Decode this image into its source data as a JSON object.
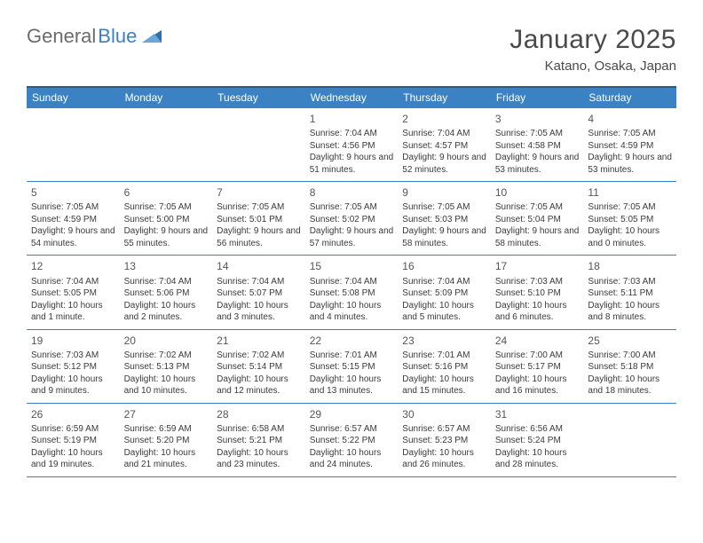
{
  "logo": {
    "text1": "General",
    "text2": "Blue"
  },
  "header": {
    "title": "January 2025",
    "location": "Katano, Osaka, Japan"
  },
  "dayNames": [
    "Sunday",
    "Monday",
    "Tuesday",
    "Wednesday",
    "Thursday",
    "Friday",
    "Saturday"
  ],
  "colors": {
    "header_bg": "#3b82c4",
    "header_border": "#2a5a8a",
    "week_border": "#3b7fc4",
    "text": "#3a3a3a",
    "title_text": "#4a4a4a",
    "logo_gray": "#6b6b6b",
    "logo_blue": "#3b7fc4",
    "background": "#ffffff"
  },
  "typography": {
    "title_fontsize": 30,
    "subtitle_fontsize": 15,
    "dayheader_fontsize": 12,
    "daynum_fontsize": 12,
    "cell_fontsize": 10
  },
  "labels": {
    "sunrise": "Sunrise:",
    "sunset": "Sunset:",
    "daylight": "Daylight:"
  },
  "weeks": [
    [
      null,
      null,
      null,
      {
        "day": "1",
        "sunrise": "7:04 AM",
        "sunset": "4:56 PM",
        "daylight": "9 hours and 51 minutes."
      },
      {
        "day": "2",
        "sunrise": "7:04 AM",
        "sunset": "4:57 PM",
        "daylight": "9 hours and 52 minutes."
      },
      {
        "day": "3",
        "sunrise": "7:05 AM",
        "sunset": "4:58 PM",
        "daylight": "9 hours and 53 minutes."
      },
      {
        "day": "4",
        "sunrise": "7:05 AM",
        "sunset": "4:59 PM",
        "daylight": "9 hours and 53 minutes."
      }
    ],
    [
      {
        "day": "5",
        "sunrise": "7:05 AM",
        "sunset": "4:59 PM",
        "daylight": "9 hours and 54 minutes."
      },
      {
        "day": "6",
        "sunrise": "7:05 AM",
        "sunset": "5:00 PM",
        "daylight": "9 hours and 55 minutes."
      },
      {
        "day": "7",
        "sunrise": "7:05 AM",
        "sunset": "5:01 PM",
        "daylight": "9 hours and 56 minutes."
      },
      {
        "day": "8",
        "sunrise": "7:05 AM",
        "sunset": "5:02 PM",
        "daylight": "9 hours and 57 minutes."
      },
      {
        "day": "9",
        "sunrise": "7:05 AM",
        "sunset": "5:03 PM",
        "daylight": "9 hours and 58 minutes."
      },
      {
        "day": "10",
        "sunrise": "7:05 AM",
        "sunset": "5:04 PM",
        "daylight": "9 hours and 58 minutes."
      },
      {
        "day": "11",
        "sunrise": "7:05 AM",
        "sunset": "5:05 PM",
        "daylight": "10 hours and 0 minutes."
      }
    ],
    [
      {
        "day": "12",
        "sunrise": "7:04 AM",
        "sunset": "5:05 PM",
        "daylight": "10 hours and 1 minute."
      },
      {
        "day": "13",
        "sunrise": "7:04 AM",
        "sunset": "5:06 PM",
        "daylight": "10 hours and 2 minutes."
      },
      {
        "day": "14",
        "sunrise": "7:04 AM",
        "sunset": "5:07 PM",
        "daylight": "10 hours and 3 minutes."
      },
      {
        "day": "15",
        "sunrise": "7:04 AM",
        "sunset": "5:08 PM",
        "daylight": "10 hours and 4 minutes."
      },
      {
        "day": "16",
        "sunrise": "7:04 AM",
        "sunset": "5:09 PM",
        "daylight": "10 hours and 5 minutes."
      },
      {
        "day": "17",
        "sunrise": "7:03 AM",
        "sunset": "5:10 PM",
        "daylight": "10 hours and 6 minutes."
      },
      {
        "day": "18",
        "sunrise": "7:03 AM",
        "sunset": "5:11 PM",
        "daylight": "10 hours and 8 minutes."
      }
    ],
    [
      {
        "day": "19",
        "sunrise": "7:03 AM",
        "sunset": "5:12 PM",
        "daylight": "10 hours and 9 minutes."
      },
      {
        "day": "20",
        "sunrise": "7:02 AM",
        "sunset": "5:13 PM",
        "daylight": "10 hours and 10 minutes."
      },
      {
        "day": "21",
        "sunrise": "7:02 AM",
        "sunset": "5:14 PM",
        "daylight": "10 hours and 12 minutes."
      },
      {
        "day": "22",
        "sunrise": "7:01 AM",
        "sunset": "5:15 PM",
        "daylight": "10 hours and 13 minutes."
      },
      {
        "day": "23",
        "sunrise": "7:01 AM",
        "sunset": "5:16 PM",
        "daylight": "10 hours and 15 minutes."
      },
      {
        "day": "24",
        "sunrise": "7:00 AM",
        "sunset": "5:17 PM",
        "daylight": "10 hours and 16 minutes."
      },
      {
        "day": "25",
        "sunrise": "7:00 AM",
        "sunset": "5:18 PM",
        "daylight": "10 hours and 18 minutes."
      }
    ],
    [
      {
        "day": "26",
        "sunrise": "6:59 AM",
        "sunset": "5:19 PM",
        "daylight": "10 hours and 19 minutes."
      },
      {
        "day": "27",
        "sunrise": "6:59 AM",
        "sunset": "5:20 PM",
        "daylight": "10 hours and 21 minutes."
      },
      {
        "day": "28",
        "sunrise": "6:58 AM",
        "sunset": "5:21 PM",
        "daylight": "10 hours and 23 minutes."
      },
      {
        "day": "29",
        "sunrise": "6:57 AM",
        "sunset": "5:22 PM",
        "daylight": "10 hours and 24 minutes."
      },
      {
        "day": "30",
        "sunrise": "6:57 AM",
        "sunset": "5:23 PM",
        "daylight": "10 hours and 26 minutes."
      },
      {
        "day": "31",
        "sunrise": "6:56 AM",
        "sunset": "5:24 PM",
        "daylight": "10 hours and 28 minutes."
      },
      null
    ]
  ]
}
